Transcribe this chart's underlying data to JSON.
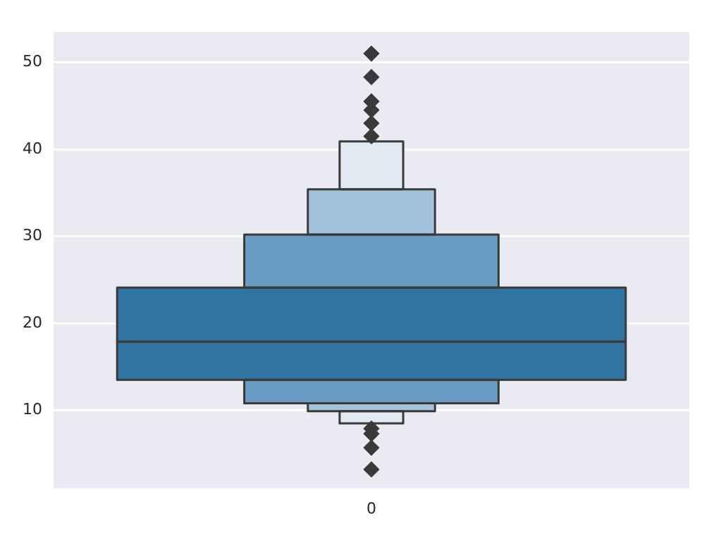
{
  "chart_data": {
    "type": "bar",
    "categories": [
      "0"
    ],
    "series": [
      {
        "color": "#e1eaf2",
        "base": [
          8.5
        ],
        "values": [
          1.4
        ]
      },
      {
        "color": "#a3c3dd",
        "base": [
          9.9
        ],
        "values": [
          0.9
        ]
      },
      {
        "color": "#6a9bc3",
        "base": [
          10.8
        ],
        "values": [
          2.7
        ]
      },
      {
        "color": "#3274a1",
        "base": [
          13.5
        ],
        "values": [
          4.4
        ]
      },
      {
        "color": "#3274a1",
        "base": [
          17.9
        ],
        "values": [
          6.2
        ]
      },
      {
        "color": "#6a9bc3",
        "base": [
          24.1
        ],
        "values": [
          6.1
        ]
      },
      {
        "color": "#a3c3dd",
        "base": [
          30.2
        ],
        "values": [
          5.2
        ]
      },
      {
        "color": "#e1eaf2",
        "base": [
          35.4
        ],
        "values": [
          5.5
        ]
      },
      {
        "type": "scatter",
        "color": "#3a3a3a",
        "x": [
          "0",
          "0",
          "0",
          "0",
          "0",
          "0",
          "0",
          "0",
          "0",
          "0"
        ],
        "values": [
          51,
          48.3,
          45.5,
          44.5,
          43,
          41.5,
          7.9,
          7.3,
          5.7,
          3.2
        ]
      }
    ],
    "ylim": [
      1,
      53.5
    ],
    "yticks": [
      10,
      20,
      30,
      40,
      50
    ],
    "grid": "y",
    "marker": "diamond",
    "legend": false
  }
}
